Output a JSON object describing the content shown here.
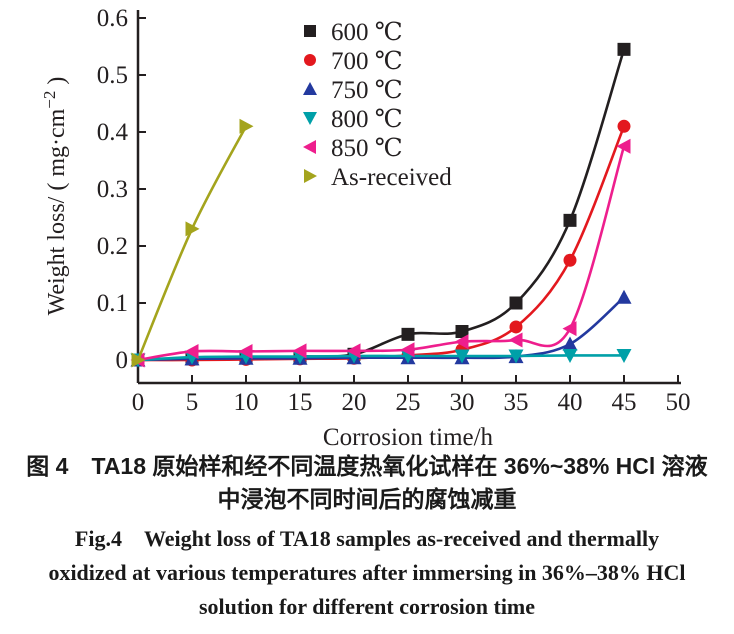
{
  "chart_data": {
    "type": "scatter",
    "title": "",
    "xlabel": "Corrosion time/h",
    "ylabel": "Weight loss/ ( mg·cm−2 )",
    "ylabel_parts": {
      "prefix": "Weight loss/ ( mg·cm",
      "sup": "−2",
      "suffix": " )"
    },
    "xlim": [
      0,
      50
    ],
    "ylim": [
      -0.04,
      0.62
    ],
    "x_ticks": [
      0,
      5,
      10,
      15,
      20,
      25,
      30,
      35,
      40,
      45,
      50
    ],
    "x_tick_labels": [
      "0",
      "5",
      "10",
      "15",
      "20",
      "25",
      "30",
      "35",
      "40",
      "45",
      "50"
    ],
    "y_ticks": [
      0,
      0.1,
      0.2,
      0.3,
      0.4,
      0.5,
      0.6
    ],
    "y_tick_labels": [
      "0",
      "0.1",
      "0.2",
      "0.3",
      "0.4",
      "0.5",
      "0.6"
    ],
    "grid": false,
    "legend_position": "top-left-inside",
    "x_default": [
      0,
      5,
      10,
      15,
      20,
      25,
      30,
      35,
      40,
      45
    ],
    "axis_color": "#231f20",
    "series": [
      {
        "name": "600 ℃",
        "marker": "square",
        "color": "#231f20",
        "values": [
          0,
          0.002,
          0.004,
          0.006,
          0.01,
          0.045,
          0.05,
          0.1,
          0.245,
          0.545
        ]
      },
      {
        "name": "700 ℃",
        "marker": "circle",
        "color": "#e3181e",
        "values": [
          0,
          0,
          0.001,
          0.002,
          0.003,
          0.008,
          0.018,
          0.058,
          0.175,
          0.41
        ]
      },
      {
        "name": "750 ℃",
        "marker": "triangle-up",
        "color": "#23399f",
        "values": [
          0,
          0.002,
          0.003,
          0.003,
          0.004,
          0.004,
          0.004,
          0.006,
          0.028,
          0.11
        ]
      },
      {
        "name": "800 ℃",
        "marker": "triangle-down",
        "color": "#00a0a8",
        "values": [
          0,
          0.005,
          0.006,
          0.006,
          0.007,
          0.007,
          0.007,
          0.007,
          0.008,
          0.008
        ]
      },
      {
        "name": "850 ℃",
        "marker": "triangle-left",
        "color": "#ee1e8d",
        "values": [
          0,
          0.015,
          0.015,
          0.016,
          0.016,
          0.018,
          0.032,
          0.035,
          0.055,
          0.375
        ]
      },
      {
        "name": "As-received",
        "marker": "triangle-right",
        "color": "#a4a41d",
        "x": [
          0,
          5,
          10
        ],
        "values": [
          0,
          0.23,
          0.41
        ]
      }
    ]
  },
  "caption": {
    "chinese_line1": "图 4　TA18 原始样和经不同温度热氧化试样在 36%~38% HCl 溶液",
    "chinese_line2": "中浸泡不同时间后的腐蚀减重",
    "english_line1": "Fig.4  Weight loss of TA18 samples as-received and thermally",
    "english_line2": "oxidized at various temperatures after immersing in 36%–38% HCl",
    "english_line3": "solution for different corrosion time"
  }
}
